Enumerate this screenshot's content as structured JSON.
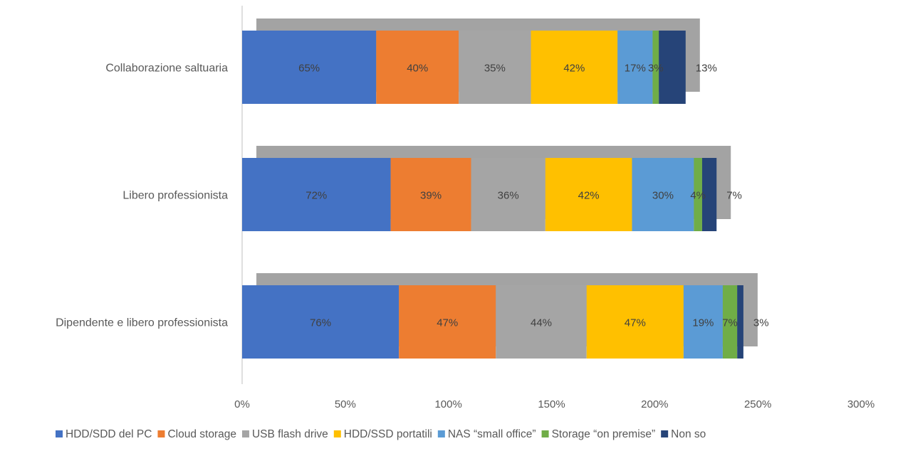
{
  "chart_data": {
    "type": "bar",
    "orientation": "horizontal",
    "stacked": true,
    "categories": [
      "Collaborazione saltuaria",
      "Libero professionista",
      "Dipendente e libero professionista"
    ],
    "series": [
      {
        "name": "HDD/SDD del PC",
        "color": "#4472C4",
        "values": [
          65,
          72,
          76
        ],
        "labels": [
          "65%",
          "72%",
          "76%"
        ]
      },
      {
        "name": "Cloud storage",
        "color": "#ED7D31",
        "values": [
          40,
          39,
          47
        ],
        "labels": [
          "40%",
          "39%",
          "47%"
        ]
      },
      {
        "name": "USB flash drive",
        "color": "#A5A5A5",
        "values": [
          35,
          36,
          44
        ],
        "labels": [
          "35%",
          "36%",
          "44%"
        ]
      },
      {
        "name": "HDD/SSD portatili",
        "color": "#FFC000",
        "values": [
          42,
          42,
          47
        ],
        "labels": [
          "42%",
          "42%",
          "47%"
        ]
      },
      {
        "name": "NAS “small office”",
        "color": "#5B9BD5",
        "values": [
          17,
          30,
          19
        ],
        "labels": [
          "17%",
          "30%",
          "19%"
        ]
      },
      {
        "name": "Storage “on premise”",
        "color": "#70AD47",
        "values": [
          3,
          4,
          7
        ],
        "labels": [
          "3%",
          "4%",
          "7%"
        ]
      },
      {
        "name": "Non so",
        "color": "#264478",
        "values": [
          13,
          7,
          3
        ],
        "labels": [
          "13%",
          "7%",
          "3%"
        ]
      }
    ],
    "xaxis": {
      "min": 0,
      "max": 300,
      "ticks": [
        0,
        50,
        100,
        150,
        200,
        250,
        300
      ],
      "tick_labels": [
        "0%",
        "50%",
        "100%",
        "150%",
        "200%",
        "250%",
        "300%"
      ]
    },
    "grid": false,
    "legend_position": "bottom",
    "shadow_color": "#999999",
    "label_color": "#404040"
  }
}
